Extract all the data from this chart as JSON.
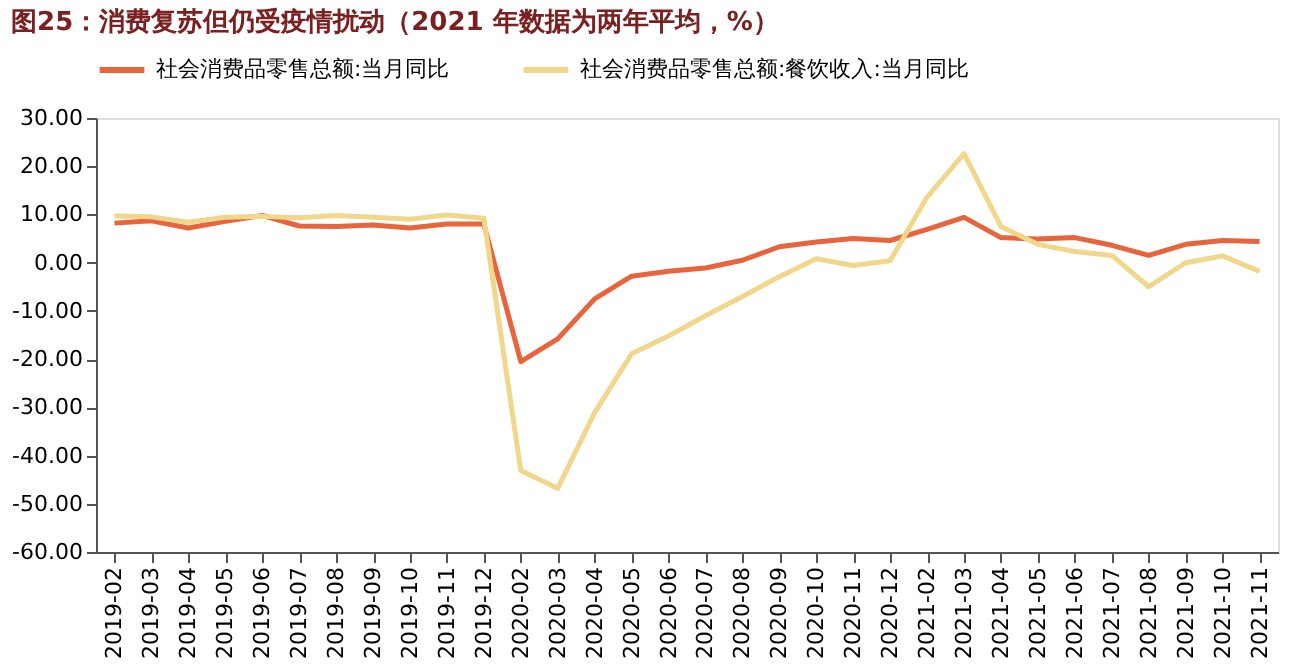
{
  "chart_data": {
    "type": "line",
    "title": "图25：消费复苏但仍受疫情扰动（2021 年数据为两年平均，%）",
    "categories": [
      "2019-02",
      "2019-03",
      "2019-04",
      "2019-05",
      "2019-06",
      "2019-07",
      "2019-08",
      "2019-09",
      "2019-10",
      "2019-11",
      "2019-12",
      "2020-02",
      "2020-03",
      "2020-04",
      "2020-05",
      "2020-06",
      "2020-07",
      "2020-08",
      "2020-09",
      "2020-10",
      "2020-11",
      "2020-12",
      "2021-02",
      "2021-03",
      "2021-04",
      "2021-05",
      "2021-06",
      "2021-07",
      "2021-08",
      "2021-09",
      "2021-10",
      "2021-11"
    ],
    "series": [
      {
        "name": "社会消费品零售总额:当月同比",
        "color": "#e8643c",
        "values": [
          8.2,
          8.7,
          7.2,
          8.6,
          9.8,
          7.6,
          7.5,
          7.8,
          7.2,
          8.0,
          8.0,
          -20.5,
          -15.8,
          -7.5,
          -2.8,
          -1.8,
          -1.1,
          0.5,
          3.3,
          4.3,
          5.0,
          4.6,
          6.9,
          9.4,
          5.2,
          4.9,
          5.2,
          3.6,
          1.5,
          3.8,
          4.6,
          4.4
        ]
      },
      {
        "name": "社会消费品零售总额:餐饮收入:当月同比",
        "color": "#f0d78c",
        "values": [
          9.7,
          9.5,
          8.4,
          9.4,
          9.6,
          9.3,
          9.8,
          9.4,
          9.0,
          9.9,
          9.2,
          -43.1,
          -46.8,
          -31.1,
          -18.9,
          -15.2,
          -11.0,
          -7.0,
          -2.9,
          0.8,
          -0.6,
          0.4,
          13.6,
          22.6,
          7.5,
          3.8,
          2.3,
          1.5,
          -5.0,
          0.0,
          1.4,
          -1.8
        ]
      }
    ],
    "ylim": [
      -60,
      30
    ],
    "yticks": [
      {
        "value": 30,
        "label": "30.00"
      },
      {
        "value": 20,
        "label": "20.00"
      },
      {
        "value": 10,
        "label": "10.00"
      },
      {
        "value": 0,
        "label": "0.00"
      },
      {
        "value": -10,
        "label": "-10.00"
      },
      {
        "value": -20,
        "label": "-20.00"
      },
      {
        "value": -30,
        "label": "-30.00"
      },
      {
        "value": -40,
        "label": "-40.00"
      },
      {
        "value": -50,
        "label": "-50.00"
      },
      {
        "value": -60,
        "label": "-60.00"
      }
    ],
    "legend": "top",
    "grid": false,
    "marker": "none",
    "line_style": "solid"
  }
}
